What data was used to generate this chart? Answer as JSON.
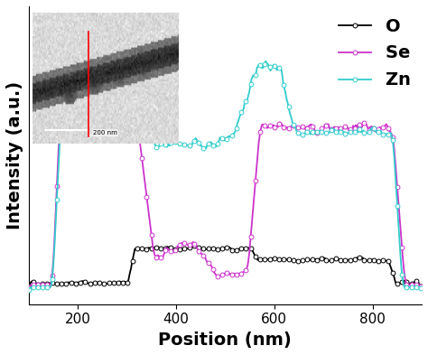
{
  "title": "",
  "xlabel": "Position (nm)",
  "ylabel": "Intensity (a.u.)",
  "xlim": [
    100,
    900
  ],
  "legend_labels": [
    "O",
    "Se",
    "Zn"
  ],
  "line_colors": [
    "#000000",
    "#cc33cc",
    "#33cccc"
  ],
  "marker": "o",
  "markersize": 3.5,
  "linewidth": 1.3,
  "xlabel_fontsize": 14,
  "ylabel_fontsize": 14,
  "legend_fontsize": 13,
  "tick_fontsize": 11,
  "xticks": [
    200,
    400,
    600,
    800
  ]
}
